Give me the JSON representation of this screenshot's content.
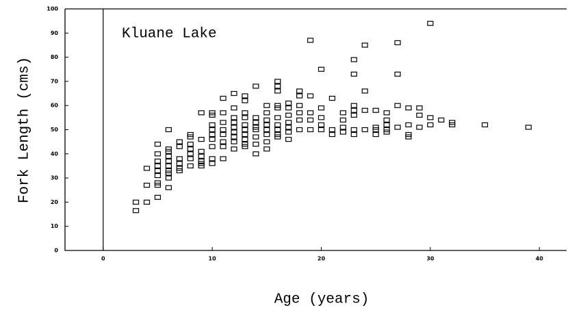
{
  "chart_data": {
    "type": "scatter",
    "annotation": "Kluane Lake",
    "x_label": "Age (years)",
    "y_label": "Fork Length (cms)",
    "color": "#000000",
    "x": [
      3,
      3,
      4,
      4,
      4,
      5,
      5,
      5,
      5,
      5,
      5,
      5,
      5,
      5,
      6,
      6,
      6,
      6,
      6,
      6,
      6,
      6,
      6,
      6,
      7,
      7,
      7,
      7,
      7,
      7,
      8,
      8,
      8,
      8,
      8,
      8,
      8,
      9,
      9,
      9,
      9,
      9,
      9,
      9,
      10,
      10,
      10,
      10,
      10,
      10,
      10,
      10,
      10,
      11,
      11,
      11,
      11,
      11,
      11,
      11,
      11,
      12,
      12,
      12,
      12,
      12,
      12,
      12,
      12,
      12,
      13,
      13,
      13,
      13,
      13,
      13,
      13,
      13,
      13,
      13,
      14,
      14,
      14,
      14,
      14,
      14,
      14,
      14,
      15,
      15,
      15,
      15,
      15,
      15,
      15,
      15,
      16,
      16,
      16,
      16,
      16,
      16,
      16,
      16,
      16,
      16,
      17,
      17,
      17,
      17,
      17,
      17,
      17,
      18,
      18,
      18,
      18,
      18,
      18,
      19,
      19,
      19,
      19,
      19,
      20,
      20,
      20,
      20,
      20,
      21,
      21,
      21,
      22,
      22,
      22,
      22,
      23,
      23,
      23,
      23,
      23,
      23,
      23,
      24,
      24,
      24,
      24,
      25,
      25,
      25,
      25,
      26,
      26,
      26,
      26,
      26,
      27,
      27,
      27,
      27,
      28,
      28,
      28,
      28,
      29,
      29,
      29,
      30,
      30,
      30,
      31,
      32,
      32,
      35,
      39
    ],
    "values": [
      20,
      16.5,
      27,
      34,
      20,
      44,
      40,
      37,
      35,
      33,
      31,
      28,
      27,
      22,
      50,
      42,
      41,
      39,
      37,
      35,
      33,
      32,
      30,
      26,
      45,
      43,
      38,
      36,
      34,
      33,
      48,
      47,
      44,
      42,
      40,
      38,
      35,
      57,
      46,
      41,
      39,
      37,
      36,
      35,
      57,
      56,
      52,
      50,
      48,
      46,
      43,
      38,
      36,
      63,
      57,
      53,
      50,
      48,
      45,
      43,
      38,
      65,
      59,
      55,
      53,
      51,
      49,
      47,
      45,
      42,
      64,
      62,
      57,
      55,
      52,
      50,
      48,
      46,
      44,
      43,
      68,
      55,
      53,
      51,
      50,
      47,
      44,
      40,
      60,
      57,
      54,
      52,
      50,
      48,
      45,
      42,
      70,
      68,
      66,
      60,
      59,
      55,
      52,
      50,
      48,
      47,
      61,
      59,
      56,
      53,
      51,
      49,
      46,
      66,
      64,
      60,
      57,
      54,
      50,
      87,
      64,
      57,
      54,
      50,
      75,
      59,
      55,
      52,
      50,
      63,
      50,
      48,
      57,
      54,
      51,
      49,
      79,
      73,
      60,
      58,
      56,
      50,
      48,
      85,
      66,
      58,
      50,
      58,
      51,
      50,
      48,
      57,
      54,
      52,
      50,
      49,
      86,
      73,
      60,
      51,
      59,
      52,
      48,
      47,
      59,
      56,
      51,
      94,
      55,
      52,
      54,
      53,
      52,
      52,
      51
    ],
    "xlim": [
      -3.5,
      42.5
    ],
    "ylim": [
      0,
      100
    ],
    "xticks": [
      0,
      10,
      20,
      30,
      40
    ],
    "yticks": [
      0,
      10,
      20,
      30,
      40,
      50,
      60,
      70,
      80,
      90,
      100
    ]
  }
}
